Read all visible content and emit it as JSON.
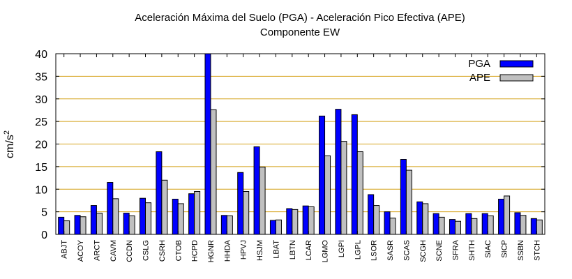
{
  "chart_data": {
    "type": "bar",
    "title": "Aceleración Máxima del Suelo (PGA) -  Aceleración Pico Efectiva (APE)",
    "subtitle": "Componente EW",
    "xlabel": "",
    "ylabel_text": "cm/s",
    "ylabel_sup": "2",
    "ylim": [
      0,
      40
    ],
    "yticks": [
      0,
      5,
      10,
      15,
      20,
      25,
      30,
      35,
      40
    ],
    "grid": "horizontal",
    "legend_position": "top-right",
    "categories": [
      "ABJT",
      "ACOY",
      "ARCT",
      "CAVM",
      "CCDN",
      "CSLG",
      "CSRH",
      "CTOB",
      "HCPD",
      "HGNR",
      "HHDA",
      "HPVJ",
      "HSJM",
      "LBAT",
      "LBTN",
      "LCAR",
      "LGMO",
      "LGPI",
      "LGPL",
      "LSOR",
      "SASR",
      "SCAS",
      "SCGH",
      "SCNE",
      "SFRA",
      "SHTH",
      "SIAC",
      "SICP",
      "SSBN",
      "STCH"
    ],
    "series": [
      {
        "name": "PGA",
        "color": "#0000ff",
        "values": [
          3.8,
          4.2,
          6.4,
          11.5,
          4.7,
          8.0,
          18.3,
          7.8,
          9.0,
          40.0,
          4.2,
          13.7,
          19.4,
          3.1,
          5.7,
          6.3,
          26.2,
          27.7,
          26.5,
          8.8,
          5.0,
          16.6,
          7.2,
          4.6,
          3.3,
          4.6,
          4.6,
          7.8,
          4.8,
          3.5
        ]
      },
      {
        "name": "APE",
        "color": "#c0c0c0",
        "values": [
          3.0,
          3.9,
          4.7,
          7.9,
          4.1,
          7.0,
          12.0,
          6.8,
          9.5,
          27.6,
          4.1,
          9.5,
          14.9,
          3.2,
          5.5,
          6.1,
          17.4,
          20.6,
          18.3,
          6.4,
          3.6,
          14.2,
          6.8,
          3.8,
          2.9,
          3.5,
          4.1,
          8.5,
          4.2,
          3.2
        ]
      }
    ]
  }
}
